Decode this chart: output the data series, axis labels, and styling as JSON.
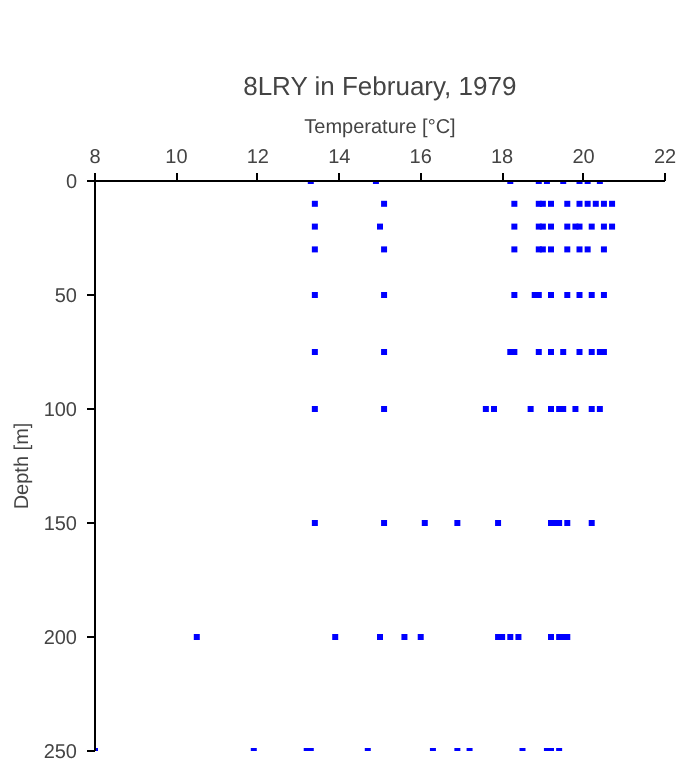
{
  "chart_data": {
    "type": "scatter",
    "title": "8LRY in February, 1979",
    "xlabel": "Temperature [°C]",
    "ylabel": "Depth [m]",
    "xlim": [
      8,
      22
    ],
    "xticks": [
      8,
      10,
      12,
      14,
      16,
      18,
      20,
      22
    ],
    "ylim": [
      250,
      0
    ],
    "yticks": [
      0,
      50,
      100,
      150,
      200,
      250
    ],
    "marker": "square",
    "series": [
      {
        "color": "#0000ff",
        "x": [
          13.3,
          14.9,
          18.2,
          18.9,
          19.1,
          19.5,
          19.9,
          20.1,
          20.4,
          13.4,
          15.1,
          18.3,
          18.9,
          19.0,
          19.2,
          19.6,
          19.9,
          20.1,
          20.3,
          20.5,
          20.7,
          13.4,
          15.0,
          18.3,
          18.9,
          19.0,
          19.2,
          19.6,
          19.8,
          19.9,
          20.2,
          20.5,
          20.7,
          13.4,
          15.1,
          18.3,
          18.9,
          19.0,
          19.2,
          19.6,
          19.9,
          20.1,
          20.5,
          13.4,
          15.1,
          18.3,
          18.8,
          18.9,
          19.2,
          19.6,
          19.9,
          20.2,
          20.5,
          13.4,
          15.1,
          18.2,
          18.3,
          18.9,
          19.2,
          19.5,
          19.9,
          20.2,
          20.4,
          20.5,
          13.4,
          15.1,
          17.6,
          17.8,
          18.7,
          19.2,
          19.4,
          19.5,
          19.8,
          20.2,
          20.4,
          13.4,
          15.1,
          16.1,
          16.9,
          17.9,
          19.2,
          19.3,
          19.4,
          19.6,
          20.2,
          10.5,
          13.9,
          15.0,
          15.6,
          16.0,
          17.9,
          18.0,
          18.2,
          18.4,
          19.2,
          19.4,
          19.5,
          19.6,
          8.0,
          11.9,
          13.2,
          13.3,
          14.7,
          16.3,
          16.9,
          17.2,
          18.5,
          19.1,
          19.2,
          19.4
        ],
        "values": [
          0,
          0,
          0,
          0,
          0,
          0,
          0,
          0,
          0,
          10,
          10,
          10,
          10,
          10,
          10,
          10,
          10,
          10,
          10,
          10,
          10,
          20,
          20,
          20,
          20,
          20,
          20,
          20,
          20,
          20,
          20,
          20,
          20,
          30,
          30,
          30,
          30,
          30,
          30,
          30,
          30,
          30,
          30,
          50,
          50,
          50,
          50,
          50,
          50,
          50,
          50,
          50,
          50,
          75,
          75,
          75,
          75,
          75,
          75,
          75,
          75,
          75,
          75,
          75,
          100,
          100,
          100,
          100,
          100,
          100,
          100,
          100,
          100,
          100,
          100,
          150,
          150,
          150,
          150,
          150,
          150,
          150,
          150,
          150,
          150,
          200,
          200,
          200,
          200,
          200,
          200,
          200,
          200,
          200,
          200,
          200,
          200,
          200,
          250,
          250,
          250,
          250,
          250,
          250,
          250,
          250,
          250,
          250,
          250,
          250
        ]
      }
    ]
  }
}
